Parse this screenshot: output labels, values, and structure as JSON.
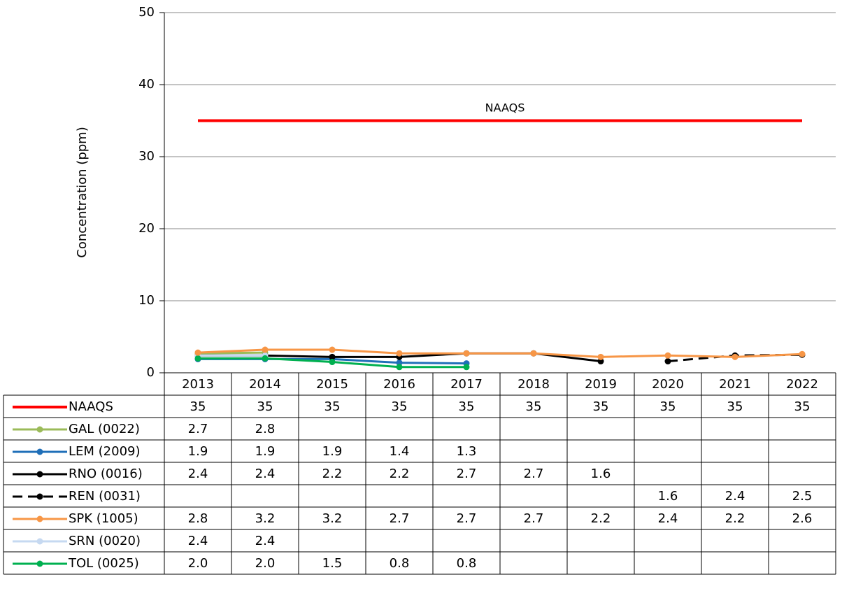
{
  "chart_data": {
    "type": "line",
    "y_label": "Concentration (ppm)",
    "annotation": "NAAQS",
    "categories": [
      "2013",
      "2014",
      "2015",
      "2016",
      "2017",
      "2018",
      "2019",
      "2020",
      "2021",
      "2022"
    ],
    "ylim": [
      0,
      50
    ],
    "yticks": [
      0,
      10,
      20,
      30,
      40,
      50
    ],
    "grid": true,
    "series": [
      {
        "name": "NAAQS",
        "color": "#ff0000",
        "markers": false,
        "values": [
          35,
          35,
          35,
          35,
          35,
          35,
          35,
          35,
          35,
          35
        ]
      },
      {
        "name": "GAL (0022)",
        "color": "#9bbb59",
        "markers": true,
        "values": [
          2.7,
          2.8,
          null,
          null,
          null,
          null,
          null,
          null,
          null,
          null
        ]
      },
      {
        "name": "LEM (2009)",
        "color": "#1f6fb8",
        "markers": true,
        "values": [
          1.9,
          1.9,
          1.9,
          1.4,
          1.3,
          null,
          null,
          null,
          null,
          null
        ]
      },
      {
        "name": "RNO (0016)",
        "color": "#000000",
        "markers": true,
        "values": [
          2.4,
          2.4,
          2.2,
          2.2,
          2.7,
          2.7,
          1.6,
          null,
          null,
          null
        ]
      },
      {
        "name": "REN (0031)",
        "color": "#000000",
        "markers": true,
        "dashed": true,
        "values": [
          null,
          null,
          null,
          null,
          null,
          null,
          null,
          1.6,
          2.4,
          2.5
        ]
      },
      {
        "name": "SRN (0020)",
        "color": "#c6d9f1",
        "markers": true,
        "values": [
          2.4,
          2.4,
          null,
          null,
          null,
          null,
          null,
          null,
          null,
          null
        ]
      },
      {
        "name": "TOL (0025)",
        "color": "#00b050",
        "markers": true,
        "values": [
          2.0,
          2.0,
          1.5,
          0.8,
          0.8,
          null,
          null,
          null,
          null,
          null
        ],
        "value_labels": [
          "2.0",
          "2.0",
          "1.5",
          "0.8",
          "0.8",
          null,
          null,
          null,
          null,
          null
        ]
      },
      {
        "name": "SPK (1005)",
        "color": "#f79646",
        "markers": true,
        "values": [
          2.8,
          3.2,
          3.2,
          2.7,
          2.7,
          2.7,
          2.2,
          2.4,
          2.2,
          2.6
        ]
      }
    ],
    "table_order": [
      0,
      1,
      2,
      3,
      4,
      7,
      5,
      6
    ]
  }
}
